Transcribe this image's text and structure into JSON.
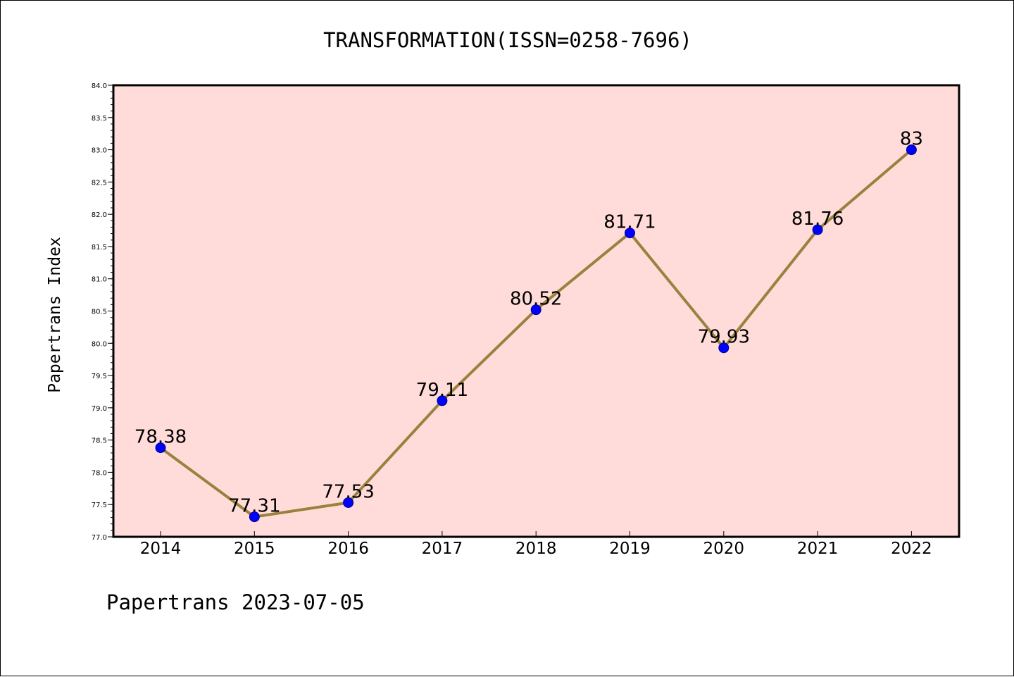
{
  "chart_data": {
    "type": "line",
    "title": "TRANSFORMATION(ISSN=0258-7696)",
    "ylabel": "Papertrans Index",
    "xlabel": "",
    "footer": "Papertrans 2023-07-05",
    "categories": [
      "2014",
      "2015",
      "2016",
      "2017",
      "2018",
      "2019",
      "2020",
      "2021",
      "2022"
    ],
    "series": [
      {
        "values": [
          78.38,
          77.31,
          77.53,
          79.11,
          80.52,
          81.71,
          79.93,
          81.76,
          83
        ],
        "labels": [
          "78.38",
          "77.31",
          "77.53",
          "79.11",
          "80.52",
          "81.71",
          "79.93",
          "81.76",
          "83"
        ]
      }
    ],
    "ylim": [
      77.0,
      84.0
    ],
    "yticks": [
      "77.0",
      "77.5",
      "78.0",
      "78.5",
      "79.0",
      "79.5",
      "80.0",
      "80.5",
      "81.0",
      "81.5",
      "82.0",
      "82.5",
      "83.0",
      "83.5",
      "84.0"
    ],
    "grid": false,
    "colors": {
      "plot_background": "#FFDCDA",
      "line": "#99823D",
      "marker": "#0000FF"
    }
  }
}
